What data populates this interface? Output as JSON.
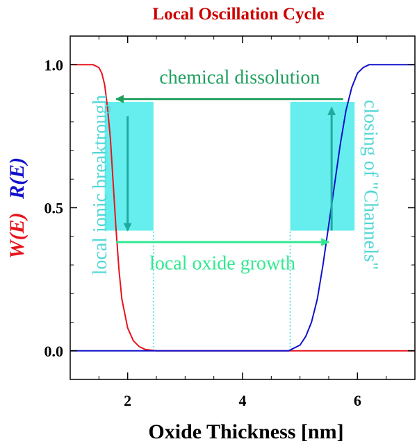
{
  "chart_data": {
    "type": "line",
    "title": "Local Oscillation Cycle",
    "xlabel": "Oxide Thickness [nm]",
    "ylabel_parts": [
      {
        "text": "W(E)",
        "color": "#e8141c"
      },
      {
        "text": "R(E)",
        "color": "#1010cc"
      }
    ],
    "xlim": [
      1,
      7
    ],
    "ylim": [
      -0.1,
      1.1
    ],
    "x_ticks": [
      {
        "value": 2,
        "label": "2"
      },
      {
        "value": 4,
        "label": "4"
      },
      {
        "value": 6,
        "label": "6"
      }
    ],
    "y_ticks": [
      {
        "value": 0.0,
        "label": "0.0"
      },
      {
        "value": 0.5,
        "label": "0.5"
      },
      {
        "value": 1.0,
        "label": "1.0"
      }
    ],
    "grid": false,
    "series": [
      {
        "name": "W(E)",
        "color": "#e8141c",
        "x": [
          1.0,
          1.4,
          1.5,
          1.55,
          1.6,
          1.65,
          1.7,
          1.75,
          1.8,
          1.85,
          1.9,
          2.0,
          2.1,
          2.2,
          2.3,
          2.5,
          3.0,
          5.0,
          7.0
        ],
        "y": [
          1.0,
          1.0,
          0.99,
          0.97,
          0.93,
          0.85,
          0.74,
          0.58,
          0.42,
          0.28,
          0.18,
          0.08,
          0.035,
          0.015,
          0.005,
          0.0,
          0.0,
          0.0,
          0.0
        ]
      },
      {
        "name": "R(E)",
        "color": "#1010cc",
        "x": [
          1.0,
          3.0,
          4.8,
          5.0,
          5.1,
          5.2,
          5.3,
          5.4,
          5.5,
          5.6,
          5.7,
          5.8,
          5.9,
          6.0,
          6.1,
          6.2,
          6.3,
          7.0
        ],
        "y": [
          0.0,
          0.0,
          0.0,
          0.02,
          0.05,
          0.1,
          0.18,
          0.3,
          0.44,
          0.58,
          0.72,
          0.84,
          0.92,
          0.97,
          0.99,
          1.0,
          1.0,
          1.0
        ]
      }
    ],
    "shaded_regions": [
      {
        "x": [
          1.6,
          2.45
        ],
        "y": [
          0.42,
          0.87
        ],
        "color": "#66eeee"
      },
      {
        "x": [
          4.83,
          5.95
        ],
        "y": [
          0.42,
          0.87
        ],
        "color": "#66eeee"
      }
    ],
    "reference_lines": [
      {
        "x": 2.45,
        "y": [
          0,
          0.42
        ],
        "color": "#66e0e0"
      },
      {
        "x": 4.83,
        "y": [
          0,
          0.42
        ],
        "color": "#66e0e0"
      }
    ],
    "arrows": [
      {
        "from": [
          5.75,
          0.88
        ],
        "to": [
          1.8,
          0.88
        ],
        "color": "#20a060"
      },
      {
        "from": [
          1.8,
          0.38
        ],
        "to": [
          5.5,
          0.38
        ],
        "color": "#30e890"
      },
      {
        "from": [
          2.0,
          0.82
        ],
        "to": [
          2.0,
          0.42
        ],
        "color": "#1faaa0"
      },
      {
        "from": [
          5.55,
          0.42
        ],
        "to": [
          5.55,
          0.85
        ],
        "color": "#1faaa0"
      }
    ],
    "annotations": [
      {
        "text": "chemical dissolution",
        "x": 3.95,
        "y": 0.95,
        "color": "#20a060",
        "rotate": 0
      },
      {
        "text": "local oxide growth",
        "x": 3.65,
        "y": 0.3,
        "color": "#30e890",
        "rotate": 0
      },
      {
        "text": "local ionic breaktrough",
        "x": 1.55,
        "y": 0.58,
        "color": "#55d6d6",
        "rotate": -90
      },
      {
        "text": "closing of \"Channels\"",
        "x": 6.2,
        "y": 0.58,
        "color": "#55d6d6",
        "rotate": 90
      }
    ]
  }
}
